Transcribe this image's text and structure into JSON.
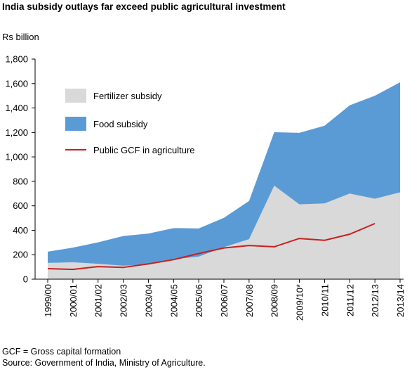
{
  "chart_data": {
    "type": "area",
    "title": "India subsidy outlays far exceed public agricultural investment",
    "ylabel": "Rs billion",
    "xlabel": "",
    "ylim": [
      0,
      1800
    ],
    "yticks": [
      "0",
      "200",
      "400",
      "600",
      "800",
      "1,000",
      "1,200",
      "1,400",
      "1,600",
      "1,800"
    ],
    "categories": [
      "1999/00",
      "2000/01",
      "2001/02",
      "2002/03",
      "2003/04",
      "2004/05",
      "2005/06",
      "2006/07",
      "2007/08",
      "2008/09",
      "2009/10*",
      "2010/11",
      "2011/12",
      "2012/13",
      "2013/14"
    ],
    "grid": false,
    "legend_position": "top-left",
    "series": [
      {
        "name": "Fertilizer subsidy",
        "kind": "area",
        "stacked": true,
        "color": "#d9d9d9",
        "values": [
          133,
          138,
          126,
          110,
          119,
          162,
          185,
          262,
          327,
          765,
          612,
          620,
          700,
          658,
          710
        ]
      },
      {
        "name": "Food subsidy",
        "kind": "area",
        "stacked": true,
        "color": "#5b9bd5",
        "values": [
          92,
          120,
          175,
          243,
          254,
          256,
          230,
          240,
          313,
          437,
          585,
          635,
          722,
          842,
          900
        ]
      },
      {
        "name": "Public GCF in agriculture",
        "kind": "line",
        "color": "#c8201f",
        "values": [
          86,
          80,
          103,
          96,
          125,
          160,
          210,
          255,
          275,
          265,
          333,
          318,
          368,
          455,
          null
        ]
      }
    ]
  },
  "footnote": {
    "line1": "GCF = Gross capital formation",
    "line2": "Source: Government of India, Ministry of Agriculture."
  }
}
